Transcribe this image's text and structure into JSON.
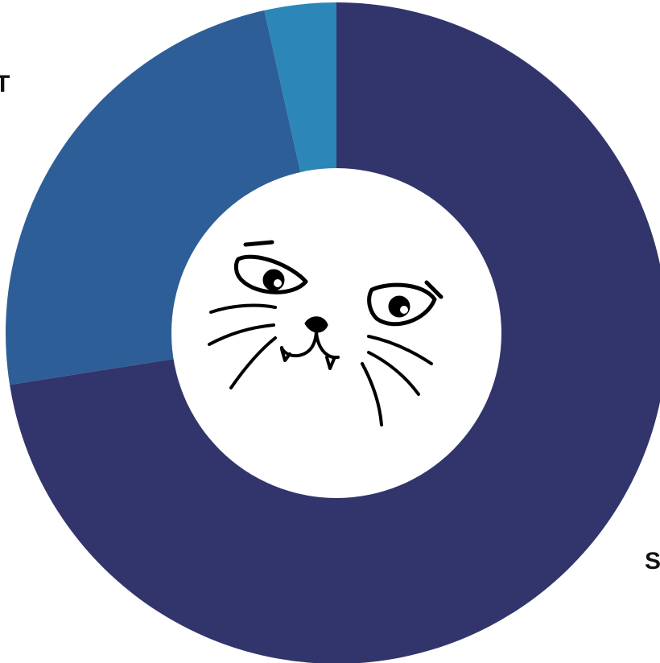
{
  "chart_data": {
    "type": "pie",
    "style": "donut",
    "slices": [
      {
        "value": 72.5,
        "color": "#32356b"
      },
      {
        "value": 24.0,
        "color": "#2e5e97"
      },
      {
        "value": 3.5,
        "color": "#2c87b8"
      }
    ],
    "center_icon": "cat-face-icon",
    "labels": {
      "left": "T",
      "right": "S"
    }
  }
}
